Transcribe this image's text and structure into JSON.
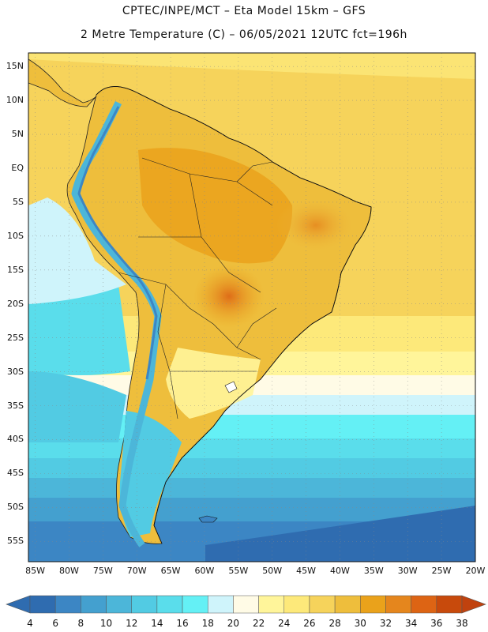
{
  "header": {
    "line1": "CPTEC/INPE/MCT –  Eta Model 15km – GFS",
    "line2": "2 Metre Temperature (C) – 06/05/2021 12UTC fct=196h"
  },
  "map": {
    "variable": "2 Metre Temperature",
    "unit": "C",
    "model": "Eta Model 15km – GFS",
    "lat_range": [
      -58,
      17
    ],
    "lon_range": [
      -86,
      -20
    ],
    "lat_labels": [
      "15N",
      "10N",
      "5N",
      "EQ",
      "5S",
      "10S",
      "15S",
      "20S",
      "25S",
      "30S",
      "35S",
      "40S",
      "45S",
      "50S",
      "55S"
    ],
    "lat_values": [
      15,
      10,
      5,
      0,
      -5,
      -10,
      -15,
      -20,
      -25,
      -30,
      -35,
      -40,
      -45,
      -50,
      -55
    ],
    "lon_labels": [
      "85W",
      "80W",
      "75W",
      "70W",
      "65W",
      "60W",
      "55W",
      "50W",
      "45W",
      "40W",
      "35W",
      "30W",
      "25W",
      "20W"
    ],
    "lon_values": [
      -85,
      -80,
      -75,
      -70,
      -65,
      -60,
      -55,
      -50,
      -45,
      -40,
      -35,
      -30,
      -25,
      -20
    ]
  },
  "colorbar": {
    "labels": [
      "4",
      "6",
      "8",
      "10",
      "12",
      "14",
      "16",
      "18",
      "20",
      "22",
      "24",
      "26",
      "28",
      "30",
      "32",
      "34",
      "36",
      "38"
    ],
    "low_color": "#2f6cb0",
    "high_color": "#c0420e",
    "colors": [
      "#2f6cb0",
      "#3c86c4",
      "#44a0cf",
      "#4cb6d9",
      "#52cbe3",
      "#5addeb",
      "#64f0f5",
      "#cff4fb",
      "#fffbe6",
      "#fff59a",
      "#fde97a",
      "#f6d35b",
      "#eebe3c",
      "#eaa21b",
      "#e5861d",
      "#dd6414",
      "#c84a0c"
    ]
  }
}
